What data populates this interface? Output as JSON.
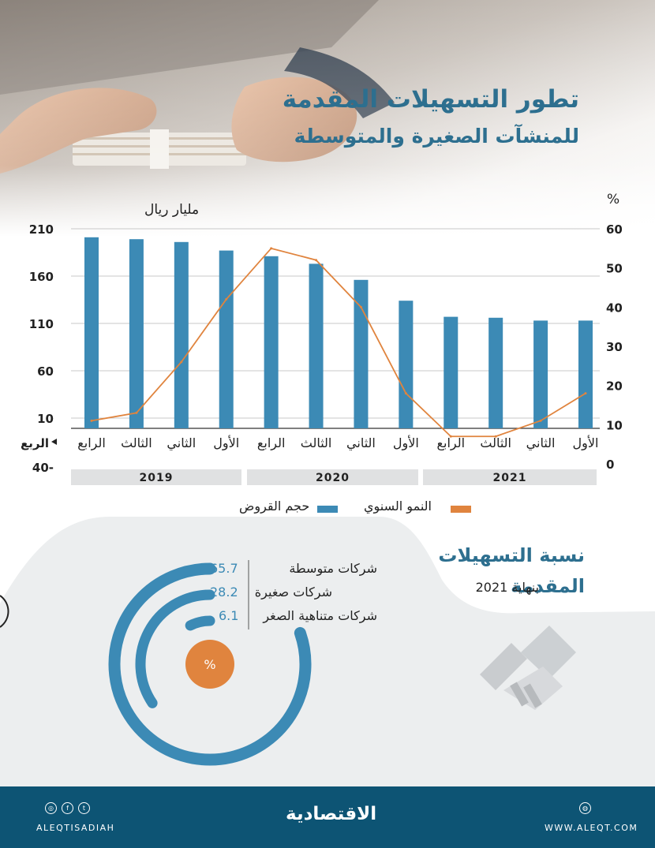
{
  "header": {
    "title_line1": "تطور التسهيلات المقدمة",
    "title_line2": "للمنشآت الصغيرة والمتوسطة"
  },
  "chart_units": {
    "left": "مليار ريال",
    "right": "%"
  },
  "row_header": "الربع",
  "years": [
    "2019",
    "2020",
    "2021"
  ],
  "legend": {
    "bars": "حجم القروض",
    "line": "النمو السنوي"
  },
  "colors": {
    "bar": "#3c8ab5",
    "line": "#e0843e",
    "title": "#2d6f8f",
    "footer": "#0d5474",
    "panel": "#eceeef"
  },
  "chart_data": {
    "type": "bar",
    "categories": [
      "الأول",
      "الثاني",
      "الثالث",
      "الرابع",
      "الأول",
      "الثاني",
      "الثالث",
      "الرابع",
      "الأول",
      "الثاني",
      "الثالث",
      "الرابع"
    ],
    "category_order": "right-to-left",
    "series": [
      {
        "name": "حجم القروض",
        "type": "bar",
        "axis": "left",
        "values": [
          113,
          113,
          116,
          117,
          134,
          156,
          173,
          181,
          187,
          196,
          199,
          201
        ]
      },
      {
        "name": "النمو السنوي",
        "type": "line",
        "axis": "right",
        "values": [
          18,
          11,
          7,
          7,
          18,
          40,
          52,
          55,
          42,
          26,
          13,
          11
        ]
      }
    ],
    "left_axis": {
      "label": "مليار ريال",
      "ticks": [
        "210",
        "160",
        "110",
        "60",
        "10",
        "-40"
      ],
      "range": [
        -40,
        210
      ]
    },
    "right_axis": {
      "label": "%",
      "ticks": [
        "60",
        "50",
        "40",
        "30",
        "20",
        "10",
        "0"
      ],
      "range": [
        0,
        60
      ]
    },
    "grid": true,
    "legend_position": "bottom"
  },
  "share": {
    "title_line1": "نسبة التسهيلات",
    "title_line2": "المقدمة",
    "subtitle": "بنهاية 2021",
    "center_label": "%",
    "chart_data": {
      "type": "radial-bar",
      "items": [
        {
          "label": "شركات متوسطة",
          "value": 65.7,
          "value_text": "65.7"
        },
        {
          "label": "شركات صغيرة",
          "value": 28.2,
          "value_text": "28.2"
        },
        {
          "label": "شركات متناهية الصغر",
          "value": 6.1,
          "value_text": "6.1"
        }
      ]
    }
  },
  "footer": {
    "left_handle": "ALEQTISADIAH",
    "logo": "الاقتصادية",
    "url": "WWW.ALEQT.COM",
    "social_icons": [
      "instagram-icon",
      "facebook-icon",
      "twitter-icon"
    ],
    "web_icon": "globe-icon"
  }
}
